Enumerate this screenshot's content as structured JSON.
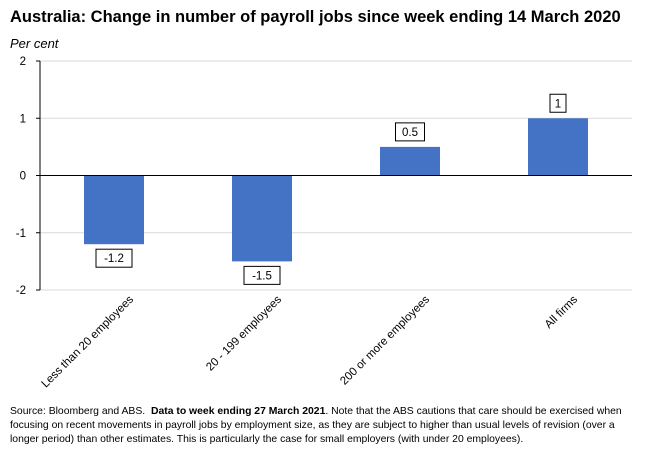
{
  "title": "Australia: Change in number of payroll jobs since week ending 14 March 2020",
  "y_unit": "Per cent",
  "source": {
    "prefix": "Source: Bloomberg and ABS.",
    "bold": "Data to week ending 27 March 2021",
    "suffix": ".  Note that the ABS cautions that care should be exercised when focusing on recent movements in payroll jobs by employment size, as they are subject to higher than usual levels of revision (over a longer period) than other estimates. This is particularly the case for small employers (with under 20 employees)."
  },
  "chart_data": {
    "type": "bar",
    "title": "Australia: Change in number of payroll jobs since week ending 14 March 2020",
    "ylabel": "Per cent",
    "categories": [
      "Less than 20 employees",
      "20 - 199 employees",
      "200 or more employees",
      "All firms"
    ],
    "values": [
      -1.2,
      -1.5,
      0.5,
      1
    ],
    "data_labels": [
      "-1.2",
      "-1.5",
      "0.5",
      "1"
    ],
    "ylim": [
      -2,
      2
    ],
    "yticks": [
      2,
      1,
      0,
      -1,
      -2
    ],
    "grid": true,
    "legend": "none",
    "bar_color": "#4472C4"
  }
}
